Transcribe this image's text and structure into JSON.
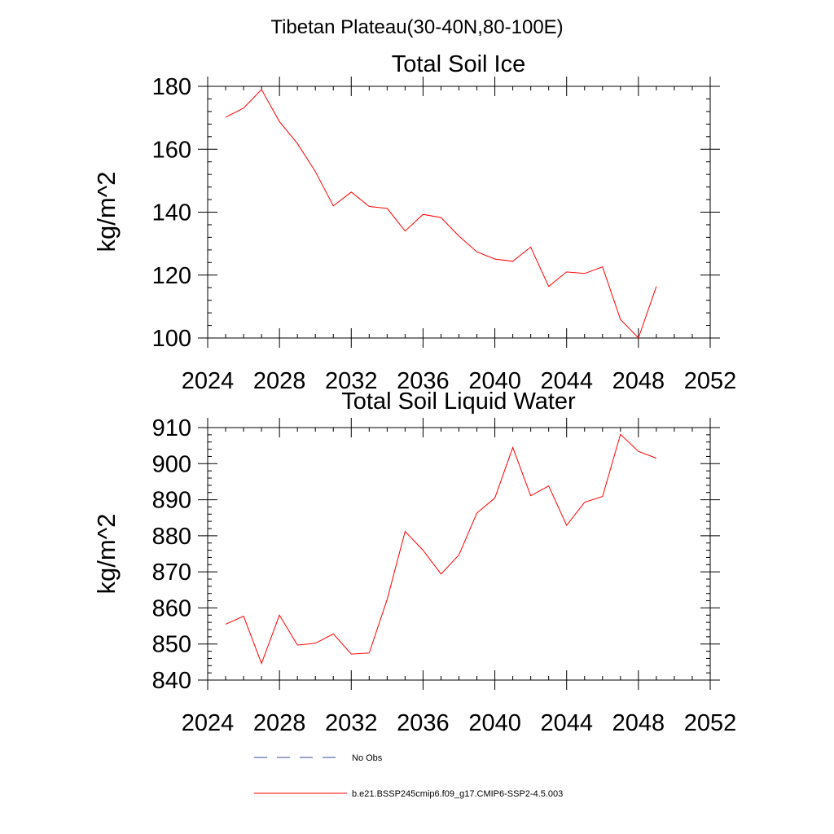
{
  "figure": {
    "main_title": "Tibetan Plateau(30-40N,80-100E)"
  },
  "chart_data": [
    {
      "type": "line",
      "title": "Total Soil Ice",
      "xlabel": "",
      "ylabel": "kg/m^2",
      "xlim": [
        2024,
        2052
      ],
      "ylim": [
        100,
        180
      ],
      "x_ticks": [
        2024,
        2028,
        2032,
        2036,
        2040,
        2044,
        2048,
        2052
      ],
      "x_tick_labels": [
        "2024",
        "2028",
        "2032",
        "2036",
        "2040",
        "2044",
        "2048",
        "2052"
      ],
      "x_minor_step": 1,
      "y_ticks": [
        100,
        120,
        140,
        160,
        180
      ],
      "y_tick_labels": [
        "100",
        "120",
        "140",
        "160",
        "180"
      ],
      "y_minor_step": 4,
      "series": [
        {
          "name": "b.e21.BSSP245cmip6.f09_g17.CMIP6-SSP2-4.5.003",
          "color": "#ff0000",
          "x": [
            2025,
            2026,
            2027,
            2028,
            2029,
            2030,
            2031,
            2032,
            2033,
            2034,
            2035,
            2036,
            2037,
            2038,
            2039,
            2040,
            2041,
            2042,
            2043,
            2044,
            2045,
            2046,
            2047,
            2048,
            2049
          ],
          "values": [
            170.2,
            173.1,
            179.0,
            168.8,
            161.8,
            152.9,
            142.0,
            146.4,
            141.8,
            141.2,
            134.0,
            139.3,
            138.3,
            132.4,
            127.4,
            125.1,
            124.4,
            128.9,
            116.4,
            121.0,
            120.5,
            122.6,
            105.9,
            100.0,
            116.4
          ]
        }
      ]
    },
    {
      "type": "line",
      "title": "Total Soil Liquid Water",
      "xlabel": "",
      "ylabel": "kg/m^2",
      "xlim": [
        2024,
        2052
      ],
      "ylim": [
        840,
        910
      ],
      "x_ticks": [
        2024,
        2028,
        2032,
        2036,
        2040,
        2044,
        2048,
        2052
      ],
      "x_tick_labels": [
        "2024",
        "2028",
        "2032",
        "2036",
        "2040",
        "2044",
        "2048",
        "2052"
      ],
      "x_minor_step": 1,
      "y_ticks": [
        840,
        850,
        860,
        870,
        880,
        890,
        900,
        910
      ],
      "y_tick_labels": [
        "840",
        "850",
        "860",
        "870",
        "880",
        "890",
        "900",
        "910"
      ],
      "y_minor_step": 2,
      "series": [
        {
          "name": "b.e21.BSSP245cmip6.f09_g17.CMIP6-SSP2-4.5.003",
          "color": "#ff0000",
          "x": [
            2025,
            2026,
            2027,
            2028,
            2029,
            2030,
            2031,
            2032,
            2033,
            2034,
            2035,
            2036,
            2037,
            2038,
            2039,
            2040,
            2041,
            2042,
            2043,
            2044,
            2045,
            2046,
            2047,
            2048,
            2049
          ],
          "values": [
            855.5,
            857.7,
            844.6,
            858.0,
            849.7,
            850.2,
            852.8,
            847.2,
            847.5,
            862.4,
            881.2,
            876.0,
            869.4,
            874.7,
            886.3,
            890.5,
            904.5,
            891.1,
            893.8,
            882.9,
            889.3,
            890.9,
            908.1,
            903.4,
            901.5
          ]
        }
      ]
    }
  ],
  "legend": [
    {
      "label": "No Obs",
      "style": "dashed",
      "color": "#3a4a8f"
    },
    {
      "label": "b.e21.BSSP245cmip6.f09_g17.CMIP6-SSP2-4.5.003",
      "style": "solid",
      "color": "#ff0000"
    }
  ]
}
